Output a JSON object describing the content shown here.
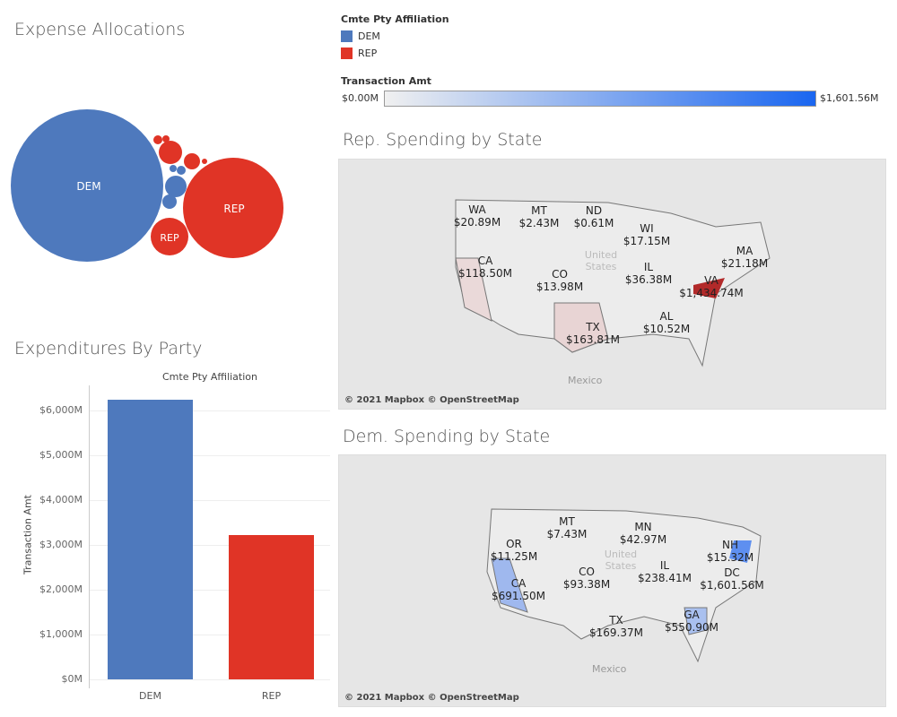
{
  "expense": {
    "title": "Expense Allocations",
    "bubbles": [
      {
        "label": "DEM"
      },
      {
        "label": "REP"
      },
      {
        "label": "REP"
      }
    ]
  },
  "legend": {
    "party_title": "Cmte Pty Affiliation",
    "items": [
      {
        "label": "DEM",
        "color": "#4e79bd"
      },
      {
        "label": "REP",
        "color": "#e03426"
      }
    ],
    "amt_title": "Transaction Amt",
    "min": "$0.00M",
    "max": "$1,601.56M"
  },
  "rep_map": {
    "title": "Rep. Spending by State",
    "credit": "© 2021 Mapbox © OpenStreetMap",
    "country": "United States",
    "mexico": "Mexico",
    "labels": [
      {
        "state": "WA",
        "value": "$20.89M"
      },
      {
        "state": "MT",
        "value": "$2.43M"
      },
      {
        "state": "ND",
        "value": "$0.61M"
      },
      {
        "state": "WI",
        "value": "$17.15M"
      },
      {
        "state": "MA",
        "value": "$21.18M"
      },
      {
        "state": "CA",
        "value": "$118.50M"
      },
      {
        "state": "CO",
        "value": "$13.98M"
      },
      {
        "state": "IL",
        "value": "$36.38M"
      },
      {
        "state": "VA",
        "value": "$1,434.74M"
      },
      {
        "state": "TX",
        "value": "$163.81M"
      },
      {
        "state": "AL",
        "value": "$10.52M"
      }
    ]
  },
  "dem_map": {
    "title": "Dem. Spending by State",
    "credit": "© 2021 Mapbox © OpenStreetMap",
    "country": "United States",
    "mexico": "Mexico",
    "labels": [
      {
        "state": "MT",
        "value": "$7.43M"
      },
      {
        "state": "MN",
        "value": "$42.97M"
      },
      {
        "state": "OR",
        "value": "$11.25M"
      },
      {
        "state": "NH",
        "value": "$15.32M"
      },
      {
        "state": "DC",
        "value": "$1,601.56M"
      },
      {
        "state": "CO",
        "value": "$93.38M"
      },
      {
        "state": "IL",
        "value": "$238.41M"
      },
      {
        "state": "CA",
        "value": "$691.50M"
      },
      {
        "state": "GA",
        "value": "$550.90M"
      },
      {
        "state": "TX",
        "value": "$169.37M"
      }
    ]
  },
  "bar": {
    "title": "Expenditures By Party"
  },
  "chart_data": {
    "type": "bar",
    "title": "Cmte Pty Affiliation",
    "categories": [
      "DEM",
      "REP"
    ],
    "values": [
      6240,
      3220
    ],
    "colors": [
      "#4e79bd",
      "#e03426"
    ],
    "ylabel": "Transaction Amt",
    "ylim": [
      0,
      6000
    ],
    "yticks": [
      "$0M",
      "$1,000M",
      "$2,000M",
      "$3,000M",
      "$4,000M",
      "$5,000M",
      "$6,000M"
    ]
  }
}
